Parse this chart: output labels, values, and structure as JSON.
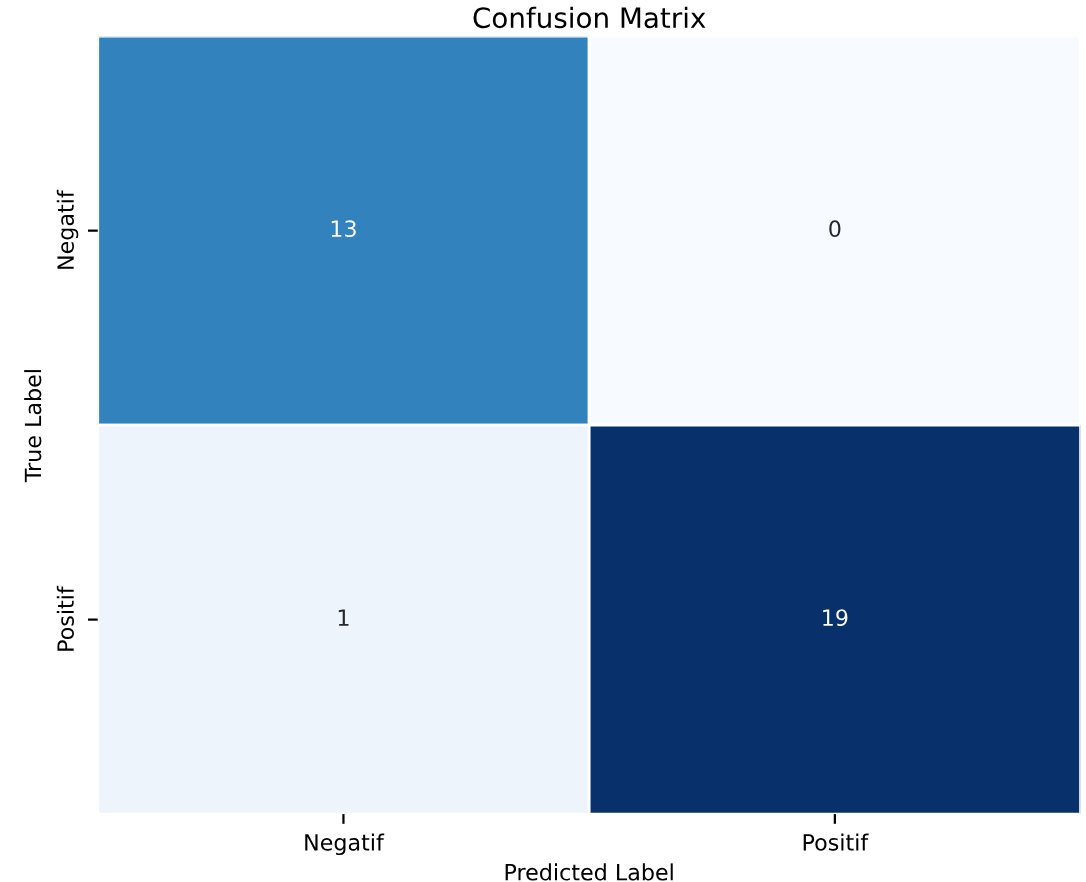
{
  "chart_data": {
    "type": "heatmap",
    "title": "Confusion Matrix",
    "xlabel": "Predicted Label",
    "ylabel": "True Label",
    "categories": [
      "Negatif",
      "Positif"
    ],
    "y_categories": [
      "Negatif",
      "Positif"
    ],
    "cells": [
      [
        13,
        0
      ],
      [
        1,
        19
      ]
    ],
    "data_labels": true
  }
}
